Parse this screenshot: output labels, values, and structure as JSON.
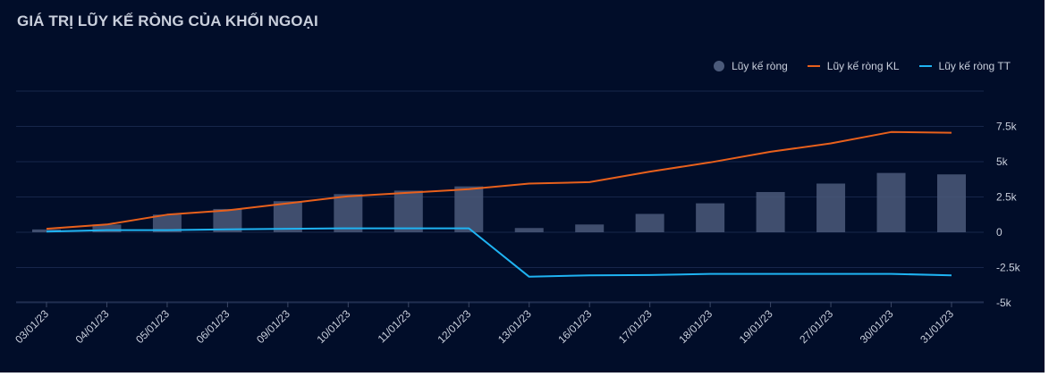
{
  "chart_data": {
    "type": "bar+line",
    "title": "GIÁ TRỊ LŨY KẾ RÒNG CỦA KHỐI NGOẠI",
    "categories": [
      "03/01/23",
      "04/01/23",
      "05/01/23",
      "06/01/23",
      "09/01/23",
      "10/01/23",
      "11/01/23",
      "12/01/23",
      "13/01/23",
      "16/01/23",
      "17/01/23",
      "18/01/23",
      "19/01/23",
      "27/01/23",
      "30/01/23",
      "31/01/23"
    ],
    "series": [
      {
        "name": "Lũy kế ròng",
        "kind": "bar",
        "color": "#4b5a7a",
        "values": [
          200,
          550,
          1250,
          1650,
          2200,
          2700,
          2950,
          3250,
          300,
          550,
          1300,
          2050,
          2850,
          3450,
          4200,
          4100
        ]
      },
      {
        "name": "Lũy kế ròng KL",
        "kind": "line",
        "color": "#e8601c",
        "values": [
          250,
          550,
          1250,
          1550,
          2050,
          2550,
          2800,
          3050,
          3450,
          3550,
          4300,
          4950,
          5700,
          6300,
          7100,
          7050
        ]
      },
      {
        "name": "Lũy kế ròng TT",
        "kind": "line",
        "color": "#1fb3f2",
        "values": [
          50,
          150,
          150,
          200,
          250,
          280,
          280,
          280,
          -3150,
          -3050,
          -3030,
          -2950,
          -2950,
          -2950,
          -2950,
          -3050
        ]
      }
    ],
    "yticks": [
      "7.5k",
      "5k",
      "2.5k",
      "0",
      "-2.5k",
      "-5k"
    ],
    "ytick_values": [
      7500,
      5000,
      2500,
      0,
      -2500,
      -5000
    ],
    "ylim": [
      -5000,
      10000
    ],
    "grid": true,
    "legend_position": "top-right"
  }
}
